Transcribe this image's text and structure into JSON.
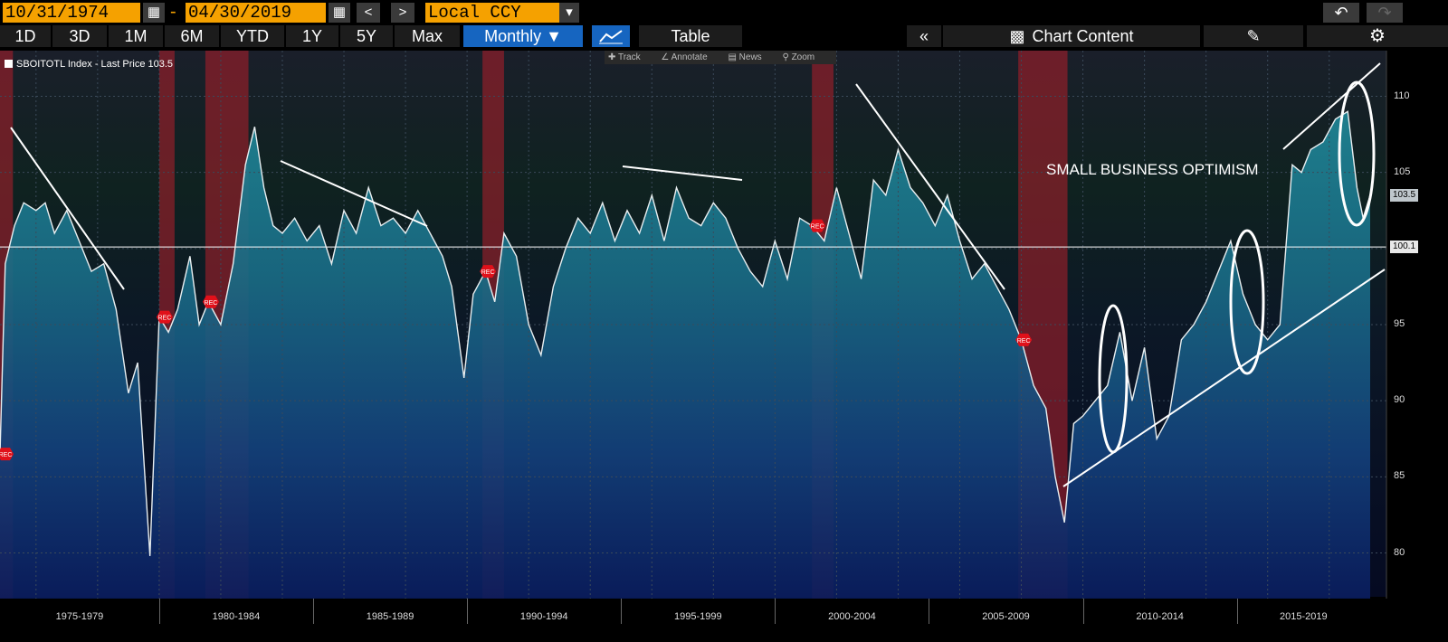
{
  "toolbar": {
    "start_date": "10/31/1974",
    "end_date": "04/30/2019",
    "currency": "Local CCY",
    "dash": "-"
  },
  "nav": {
    "periods": [
      "1D",
      "3D",
      "1M",
      "6M",
      "YTD",
      "1Y",
      "5Y",
      "Max"
    ],
    "frequency": "Monthly ▼",
    "table_label": "Table",
    "chart_content_label": "Chart Content"
  },
  "subbar": {
    "track": "Track",
    "annotate": "Annotate",
    "news": "News",
    "zoom": "Zoom"
  },
  "legend": {
    "text": "SBOITOTL Index - Last Price 103.5"
  },
  "annotation": {
    "text": "SMALL BUSINESS OPTIMISM"
  },
  "rec_label": "REC",
  "chart_data": {
    "type": "line",
    "series": [
      {
        "name": "SBOITOTL Index - Last Price",
        "x": [
          1974.83,
          1975.0,
          1975.3,
          1975.6,
          1976.0,
          1976.3,
          1976.6,
          1977.0,
          1977.4,
          1977.8,
          1978.2,
          1978.6,
          1979.0,
          1979.3,
          1979.7,
          1980.0,
          1980.3,
          1980.6,
          1981.0,
          1981.3,
          1981.6,
          1982.0,
          1982.4,
          1982.8,
          1983.1,
          1983.4,
          1983.7,
          1984.0,
          1984.4,
          1984.8,
          1985.2,
          1985.6,
          1986.0,
          1986.4,
          1986.8,
          1987.2,
          1987.6,
          1988.0,
          1988.4,
          1988.8,
          1989.2,
          1989.5,
          1989.9,
          1990.2,
          1990.6,
          1990.9,
          1991.2,
          1991.6,
          1992.0,
          1992.4,
          1992.8,
          1993.2,
          1993.6,
          1994.0,
          1994.4,
          1994.8,
          1995.2,
          1995.6,
          1996.0,
          1996.4,
          1996.8,
          1997.2,
          1997.6,
          1998.0,
          1998.4,
          1998.8,
          1999.2,
          1999.6,
          2000.0,
          2000.4,
          2000.8,
          2001.2,
          2001.6,
          2002.0,
          2002.4,
          2002.8,
          2003.2,
          2003.6,
          2004.0,
          2004.4,
          2004.8,
          2005.2,
          2005.6,
          2006.0,
          2006.4,
          2006.8,
          2007.2,
          2007.6,
          2008.0,
          2008.4,
          2008.8,
          2009.1,
          2009.4,
          2009.7,
          2010.0,
          2010.4,
          2010.8,
          2011.2,
          2011.6,
          2012.0,
          2012.4,
          2012.8,
          2013.2,
          2013.6,
          2014.0,
          2014.4,
          2014.8,
          2015.2,
          2015.6,
          2016.0,
          2016.4,
          2016.8,
          2017.1,
          2017.4,
          2017.8,
          2018.2,
          2018.6,
          2018.9,
          2019.1,
          2019.33
        ],
        "values": [
          86.5,
          99.0,
          101.5,
          103.0,
          102.5,
          103.0,
          101.0,
          102.5,
          100.5,
          98.5,
          99.0,
          96.0,
          90.5,
          92.5,
          79.8,
          95.5,
          94.5,
          96.0,
          99.5,
          95.0,
          96.5,
          95.0,
          99.0,
          105.5,
          108.0,
          104.0,
          101.5,
          101.0,
          102.0,
          100.5,
          101.5,
          99.0,
          102.5,
          101.0,
          104.0,
          101.5,
          102.0,
          101.0,
          102.5,
          101.0,
          99.5,
          97.5,
          91.5,
          97.0,
          98.5,
          96.5,
          101.0,
          99.5,
          95.0,
          93.0,
          97.5,
          100.0,
          102.0,
          101.0,
          103.0,
          100.5,
          102.5,
          101.0,
          103.5,
          100.5,
          104.0,
          102.0,
          101.5,
          103.0,
          102.0,
          100.0,
          98.5,
          97.5,
          100.5,
          98.0,
          102.0,
          101.5,
          100.5,
          104.0,
          101.0,
          98.0,
          104.5,
          103.5,
          106.5,
          104.0,
          103.0,
          101.5,
          103.5,
          100.5,
          98.0,
          99.0,
          97.5,
          96.0,
          94.0,
          91.0,
          89.5,
          85.0,
          82.0,
          88.5,
          89.0,
          90.0,
          91.0,
          94.5,
          90.0,
          93.5,
          87.5,
          89.0,
          94.0,
          95.0,
          96.5,
          98.5,
          100.5,
          97.0,
          95.0,
          94.0,
          95.0,
          105.5,
          105.0,
          106.5,
          107.0,
          108.5,
          109.0,
          104.0,
          102.0,
          103.5
        ]
      }
    ],
    "xlabels": [
      "1975-1979",
      "1980-1984",
      "1985-1989",
      "1990-1994",
      "1995-1999",
      "2000-2004",
      "2005-2009",
      "2010-2014",
      "2015-2019"
    ],
    "yticks": [
      80,
      85,
      90,
      95,
      100,
      105,
      110
    ],
    "xlim": [
      1974.83,
      2019.33
    ],
    "ylim": [
      77,
      113
    ],
    "reference_line": {
      "value": 100.1,
      "label": "100.1"
    },
    "last_value_label": "103.5",
    "recessions": [
      [
        1974.83,
        1975.25
      ],
      [
        1980.0,
        1980.5
      ],
      [
        1981.5,
        1982.9
      ],
      [
        1990.5,
        1991.2
      ],
      [
        2001.2,
        2001.9
      ],
      [
        2007.9,
        2009.5
      ]
    ],
    "colors": {
      "line": "#e8eef0",
      "fill_top": "#1f7f8f",
      "fill_bottom": "#0e2f72",
      "recession": "#a21f2a",
      "background": "#0c1b2c",
      "reference": "#ffffff"
    }
  }
}
